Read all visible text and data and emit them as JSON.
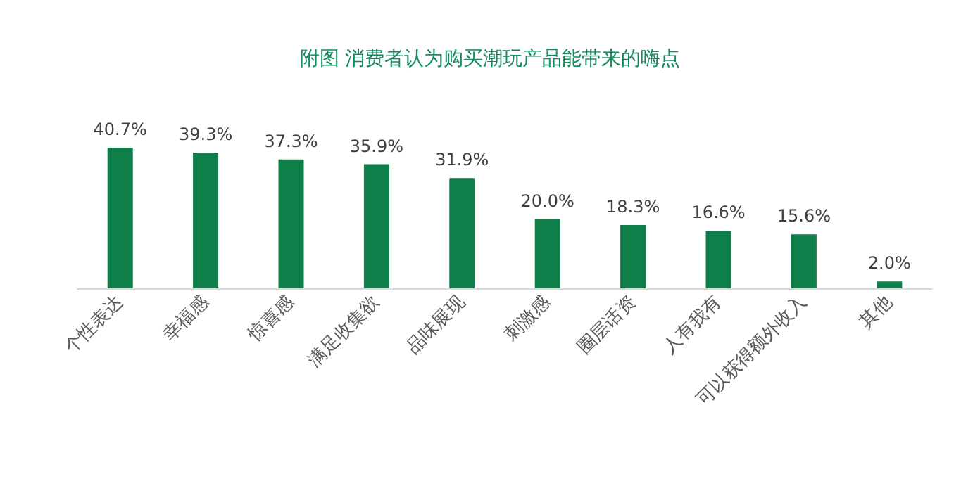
{
  "chart_data": {
    "type": "bar",
    "title": "附图 消费者认为购买潮玩产品能带来的嗨点",
    "categories": [
      "个性表达",
      "幸福感",
      "惊喜感",
      "满足收集欲",
      "品味展现",
      "刺激感",
      "圈层话资",
      "人有我有",
      "可以获得额外收入",
      "其他"
    ],
    "values": [
      40.7,
      39.3,
      37.3,
      35.9,
      31.9,
      20.0,
      18.3,
      16.6,
      15.6,
      2.0
    ],
    "value_labels": [
      "40.7%",
      "39.3%",
      "37.3%",
      "35.9%",
      "31.9%",
      "20.0%",
      "18.3%",
      "16.6%",
      "15.6%",
      "2.0%"
    ],
    "color": "#0e7f48"
  }
}
